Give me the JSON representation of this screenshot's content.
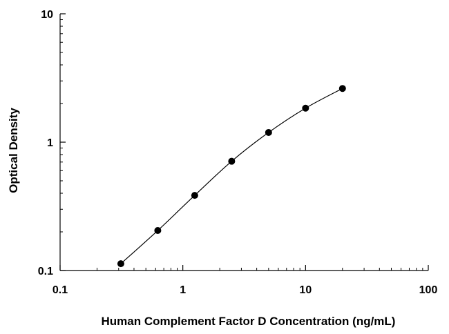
{
  "chart_data": {
    "type": "scatter",
    "title": "",
    "xlabel": "Human Complement Factor D Concentration (ng/mL)",
    "ylabel": "Optical Density",
    "x_scale": "log",
    "y_scale": "log",
    "xlim": [
      0.1,
      100
    ],
    "ylim": [
      0.1,
      10
    ],
    "x_ticks": [
      "0.1",
      "1",
      "10",
      "100"
    ],
    "y_ticks": [
      "0.1",
      "1",
      "10"
    ],
    "grid": false,
    "legend": "none",
    "fit_curve": true,
    "series": [
      {
        "color": "#000000",
        "points": [
          {
            "x": 0.3125,
            "y": 0.113
          },
          {
            "x": 0.625,
            "y": 0.205
          },
          {
            "x": 1.25,
            "y": 0.385
          },
          {
            "x": 2.5,
            "y": 0.71
          },
          {
            "x": 5,
            "y": 1.19
          },
          {
            "x": 10,
            "y": 1.84
          },
          {
            "x": 20,
            "y": 2.62
          }
        ]
      }
    ]
  }
}
